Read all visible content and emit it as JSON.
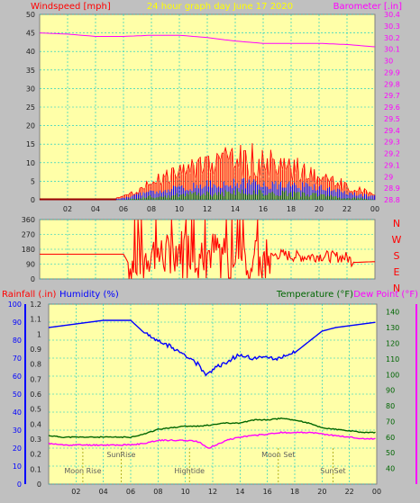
{
  "colors": {
    "page_bg": "#c0c0c0",
    "plot_bg": "#ffffa8",
    "grid": "#00c8c8",
    "red": "#ff0000",
    "magenta": "#ff00ff",
    "blue": "#0000ff",
    "dark_green": "#006600",
    "dark_red": "#990000",
    "tick_text": "#202020",
    "title_yellow": "#ffff00"
  },
  "header": {
    "title": "24 hour graph day   June 17 2020",
    "left_label": "Windspeed [mph]",
    "right_label": "Barometer [.in]"
  },
  "direction_labels": [
    "N",
    "W",
    "S",
    "E",
    "N"
  ],
  "bottom_header": {
    "rainfall": "Rainfall (.in)",
    "humidity": "Humidity (%)",
    "temperature": "Temperature (°F)",
    "dewpoint": "Dew Point (°F)"
  },
  "events": [
    {
      "label": "Moon Rise",
      "hour": 2.5
    },
    {
      "label": "SunRise",
      "hour": 5.3
    },
    {
      "label": "Hightide",
      "hour": 10.3
    },
    {
      "label": "Moon Set",
      "hour": 16.8
    },
    {
      "label": "SunSet",
      "hour": 20.8
    }
  ],
  "chart_data": [
    {
      "type": "line",
      "title": "24 hour graph day   June 17 2020",
      "x_tick_labels": [
        "02",
        "04",
        "06",
        "08",
        "10",
        "12",
        "14",
        "16",
        "18",
        "20",
        "22",
        "00"
      ],
      "xlim_hours": [
        0,
        24
      ],
      "y_left": {
        "label": "Windspeed [mph]",
        "ylim": [
          0,
          50
        ],
        "ticks": [
          0,
          5,
          10,
          15,
          20,
          25,
          30,
          35,
          40,
          45,
          50
        ]
      },
      "y_right": {
        "label": "Barometer [.in]",
        "ylim": [
          28.8,
          30.4
        ],
        "ticks": [
          "28.8",
          "28.9",
          "29",
          "29.1",
          "29.2",
          "29.3",
          "29.4",
          "29.5",
          "29.6",
          "29.7",
          "29.8",
          "29.9",
          "30",
          "30.1",
          "30.2",
          "30.3",
          "30.4"
        ]
      },
      "series": [
        {
          "color": "magenta",
          "axis": "right",
          "x": [
            0,
            2,
            4,
            6,
            8,
            10,
            12,
            14,
            16,
            18,
            20,
            22,
            24
          ],
          "y": [
            30.24,
            30.23,
            30.21,
            30.21,
            30.22,
            30.22,
            30.2,
            30.17,
            30.15,
            30.15,
            30.15,
            30.14,
            30.12
          ]
        },
        {
          "color": "red",
          "axis": "left",
          "style": "bars",
          "note": "gust",
          "x": [
            5,
            6,
            7,
            8,
            9,
            10,
            11,
            12,
            13,
            14,
            15,
            16,
            17,
            18,
            19,
            20,
            21,
            22,
            23,
            24
          ],
          "y": [
            0,
            1,
            3,
            5,
            7,
            9,
            10,
            11,
            12,
            12,
            13,
            12,
            11,
            10,
            9,
            8,
            6,
            4,
            3,
            2
          ]
        },
        {
          "color": "blue",
          "axis": "left",
          "style": "bars",
          "note": "average",
          "x": [
            5,
            6,
            7,
            8,
            9,
            10,
            11,
            12,
            13,
            14,
            15,
            16,
            17,
            18,
            19,
            20,
            21,
            22,
            23,
            24
          ],
          "y": [
            0,
            0.5,
            1.5,
            2.5,
            3,
            3.5,
            4,
            4.5,
            4.5,
            5,
            5,
            4.5,
            4.5,
            4,
            4,
            3.5,
            3,
            2,
            1.5,
            1
          ]
        },
        {
          "color": "dark_green",
          "axis": "left",
          "style": "bars",
          "note": "low",
          "x": [
            5,
            6,
            7,
            8,
            9,
            10,
            11,
            12,
            13,
            14,
            15,
            16,
            17,
            18,
            19,
            20,
            21,
            22,
            23,
            24
          ],
          "y": [
            0,
            0,
            0.5,
            1,
            1,
            1.5,
            2,
            2,
            2,
            2.5,
            2.5,
            2,
            2,
            2,
            1.5,
            1.5,
            1,
            0.5,
            0.5,
            0
          ]
        }
      ]
    },
    {
      "type": "line",
      "y_left": {
        "ylim": [
          0,
          360
        ],
        "ticks": [
          0,
          90,
          180,
          270,
          360
        ]
      },
      "series": [
        {
          "color": "red",
          "x": [
            0,
            2,
            4,
            6,
            6.5,
            7,
            8,
            9,
            10,
            11,
            12,
            13,
            14,
            15,
            16,
            17,
            18,
            19,
            20,
            21,
            22,
            22.5,
            24
          ],
          "y": [
            150,
            150,
            150,
            150,
            75,
            120,
            160,
            140,
            190,
            170,
            160,
            180,
            150,
            120,
            110,
            150,
            140,
            135,
            140,
            135,
            130,
            100,
            105
          ]
        }
      ]
    },
    {
      "type": "line",
      "axes": {
        "rainfall": {
          "label": "Rainfall (.in)",
          "ticks": [
            "0",
            "0.1",
            "0.2",
            "0.3",
            "0.4",
            "0.5",
            "0.6",
            "0.7",
            "0.8",
            "0.9",
            "1",
            "1.1",
            "1.2"
          ]
        },
        "humidity": {
          "label": "Humidity (%)",
          "ylim": [
            0,
            100
          ],
          "ticks": [
            0,
            10,
            20,
            30,
            40,
            50,
            60,
            70,
            80,
            90,
            100
          ]
        },
        "temperature": {
          "label": "Temperature (°F)",
          "ylim": [
            30,
            145
          ],
          "ticks": [
            40,
            50,
            60,
            70,
            80,
            90,
            100,
            110,
            120,
            130,
            140
          ]
        }
      },
      "series": [
        {
          "color": "blue",
          "axis": "humidity",
          "x": [
            0,
            1,
            2,
            4,
            6,
            7,
            8,
            9,
            10,
            11,
            11.5,
            12,
            13,
            14,
            15,
            16,
            17,
            18,
            19,
            20,
            21,
            22,
            23,
            24
          ],
          "y": [
            87,
            88,
            89,
            91,
            91,
            84,
            80,
            76,
            72,
            66,
            60,
            64,
            68,
            72,
            70,
            70,
            70,
            73,
            79,
            85,
            87,
            88,
            89,
            90
          ]
        },
        {
          "color": "dark_green",
          "axis": "temperature",
          "x": [
            0,
            1,
            2,
            4,
            6,
            7,
            8,
            9,
            10,
            11,
            12,
            13,
            14,
            15,
            16,
            17,
            18,
            19,
            20,
            21,
            22,
            23,
            24
          ],
          "y": [
            61,
            60,
            60,
            60,
            60,
            62,
            65,
            66,
            67,
            67,
            68,
            69,
            69,
            71,
            71,
            72,
            71,
            69,
            66,
            65,
            64,
            63,
            63
          ]
        },
        {
          "color": "magenta",
          "axis": "temperature",
          "x": [
            0,
            1,
            2,
            4,
            6,
            7,
            8,
            9,
            10,
            11,
            11.7,
            12.5,
            13,
            14,
            15,
            16,
            17,
            18,
            19,
            20,
            21,
            22,
            23,
            24
          ],
          "y": [
            56,
            55,
            55,
            55,
            55,
            56,
            58,
            58,
            58,
            57,
            53,
            56,
            58,
            60,
            61,
            62,
            63,
            63,
            63,
            62,
            61,
            60,
            59,
            59
          ]
        }
      ]
    }
  ]
}
